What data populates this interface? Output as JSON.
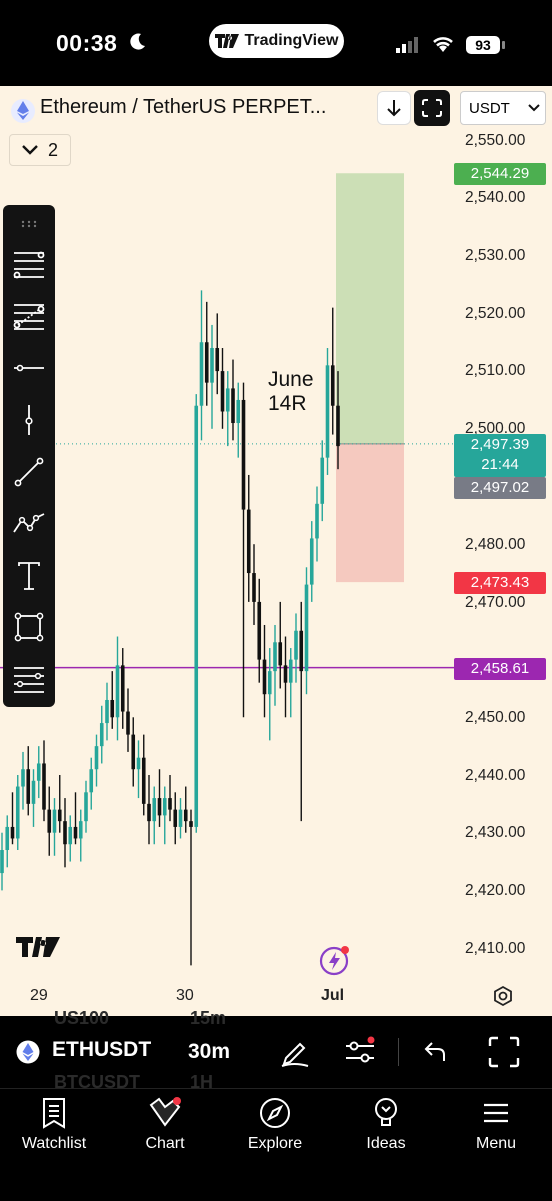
{
  "status_bar": {
    "time": "00:38",
    "pill_label": "TradingView",
    "battery": "93"
  },
  "header": {
    "title": "Ethereum / TetherUS PERPET...",
    "currency": "USDT",
    "collapse_count": "2"
  },
  "annotation": {
    "line1": "June",
    "line2": "14R"
  },
  "price_axis": [
    "2,550.00",
    "2,540.00",
    "2,530.00",
    "2,520.00",
    "2,510.00",
    "2,500.00",
    "2,480.00",
    "2,470.00",
    "2,450.00",
    "2,440.00",
    "2,430.00",
    "2,420.00",
    "2,410.00"
  ],
  "price_tags": {
    "take_profit": {
      "value": "2,544.29",
      "color": "#4CAF50"
    },
    "current": {
      "value": "2,497.39",
      "countdown": "21:44",
      "color": "#26A69A"
    },
    "prev": {
      "value": "2,497.02",
      "color": "#787B86"
    },
    "stop_loss": {
      "value": "2,473.43",
      "color": "#F23645"
    },
    "level": {
      "value": "2,458.61",
      "color": "#9C27B0"
    }
  },
  "time_axis": [
    "29",
    "30",
    "Jul"
  ],
  "symbol_bar": {
    "symbol": "ETHUSDT",
    "interval": "30m",
    "ghost_1": "US100",
    "ghost_1b": "15m",
    "ghost_2": "BTCUSDT",
    "ghost_2b": "1H"
  },
  "nav": [
    {
      "label": "Watchlist",
      "icon": "watchlist-icon"
    },
    {
      "label": "Chart",
      "icon": "chart-icon"
    },
    {
      "label": "Explore",
      "icon": "compass-icon"
    },
    {
      "label": "Ideas",
      "icon": "lightbulb-icon"
    },
    {
      "label": "Menu",
      "icon": "menu-icon"
    }
  ],
  "chart_data": {
    "type": "candlestick",
    "ylim": [
      2405,
      2555
    ],
    "candles": [
      [
        2423,
        2430,
        2420,
        2427
      ],
      [
        2427,
        2433,
        2424,
        2431
      ],
      [
        2431,
        2437,
        2428,
        2429
      ],
      [
        2429,
        2440,
        2427,
        2438
      ],
      [
        2438,
        2444,
        2434,
        2441
      ],
      [
        2441,
        2445,
        2433,
        2435
      ],
      [
        2435,
        2441,
        2431,
        2439
      ],
      [
        2439,
        2445,
        2436,
        2442
      ],
      [
        2442,
        2446,
        2432,
        2434
      ],
      [
        2434,
        2438,
        2426,
        2430
      ],
      [
        2430,
        2436,
        2426,
        2434
      ],
      [
        2434,
        2440,
        2430,
        2432
      ],
      [
        2432,
        2436,
        2424,
        2428
      ],
      [
        2428,
        2433,
        2425,
        2431
      ],
      [
        2431,
        2437,
        2428,
        2429
      ],
      [
        2429,
        2434,
        2425,
        2432
      ],
      [
        2432,
        2439,
        2430,
        2437
      ],
      [
        2437,
        2443,
        2434,
        2441
      ],
      [
        2441,
        2447,
        2438,
        2445
      ],
      [
        2445,
        2452,
        2442,
        2449
      ],
      [
        2449,
        2456,
        2446,
        2453
      ],
      [
        2453,
        2458,
        2448,
        2450
      ],
      [
        2450,
        2464,
        2446,
        2459
      ],
      [
        2459,
        2462,
        2448,
        2451
      ],
      [
        2451,
        2455,
        2444,
        2447
      ],
      [
        2447,
        2450,
        2438,
        2441
      ],
      [
        2441,
        2446,
        2436,
        2443
      ],
      [
        2443,
        2447,
        2433,
        2435
      ],
      [
        2435,
        2440,
        2428,
        2432
      ],
      [
        2432,
        2438,
        2428,
        2436
      ],
      [
        2436,
        2441,
        2431,
        2433
      ],
      [
        2433,
        2438,
        2428,
        2436
      ],
      [
        2436,
        2440,
        2432,
        2434
      ],
      [
        2434,
        2437,
        2428,
        2431
      ],
      [
        2431,
        2436,
        2429,
        2434
      ],
      [
        2434,
        2438,
        2430,
        2432
      ],
      [
        2432,
        2434,
        2407,
        2431
      ],
      [
        2431,
        2506,
        2430,
        2504
      ],
      [
        2504,
        2524,
        2498,
        2515
      ],
      [
        2515,
        2522,
        2504,
        2508
      ],
      [
        2508,
        2518,
        2500,
        2514
      ],
      [
        2514,
        2520,
        2506,
        2510
      ],
      [
        2510,
        2514,
        2500,
        2503
      ],
      [
        2503,
        2510,
        2497,
        2507
      ],
      [
        2507,
        2512,
        2498,
        2501
      ],
      [
        2501,
        2508,
        2495,
        2505
      ],
      [
        2505,
        2508,
        2450,
        2486
      ],
      [
        2486,
        2492,
        2470,
        2475
      ],
      [
        2475,
        2480,
        2466,
        2470
      ],
      [
        2470,
        2474,
        2456,
        2460
      ],
      [
        2460,
        2466,
        2450,
        2454
      ],
      [
        2454,
        2462,
        2446,
        2458
      ],
      [
        2458,
        2466,
        2452,
        2463
      ],
      [
        2463,
        2470,
        2455,
        2459
      ],
      [
        2459,
        2464,
        2450,
        2456
      ],
      [
        2456,
        2462,
        2450,
        2460
      ],
      [
        2460,
        2468,
        2456,
        2465
      ],
      [
        2465,
        2470,
        2432,
        2458
      ],
      [
        2458,
        2476,
        2454,
        2473
      ],
      [
        2473,
        2484,
        2470,
        2481
      ],
      [
        2481,
        2490,
        2477,
        2487
      ],
      [
        2487,
        2498,
        2484,
        2495
      ],
      [
        2495,
        2514,
        2492,
        2511
      ],
      [
        2511,
        2521,
        2499,
        2504
      ],
      [
        2504,
        2510,
        2493,
        2497
      ]
    ]
  }
}
